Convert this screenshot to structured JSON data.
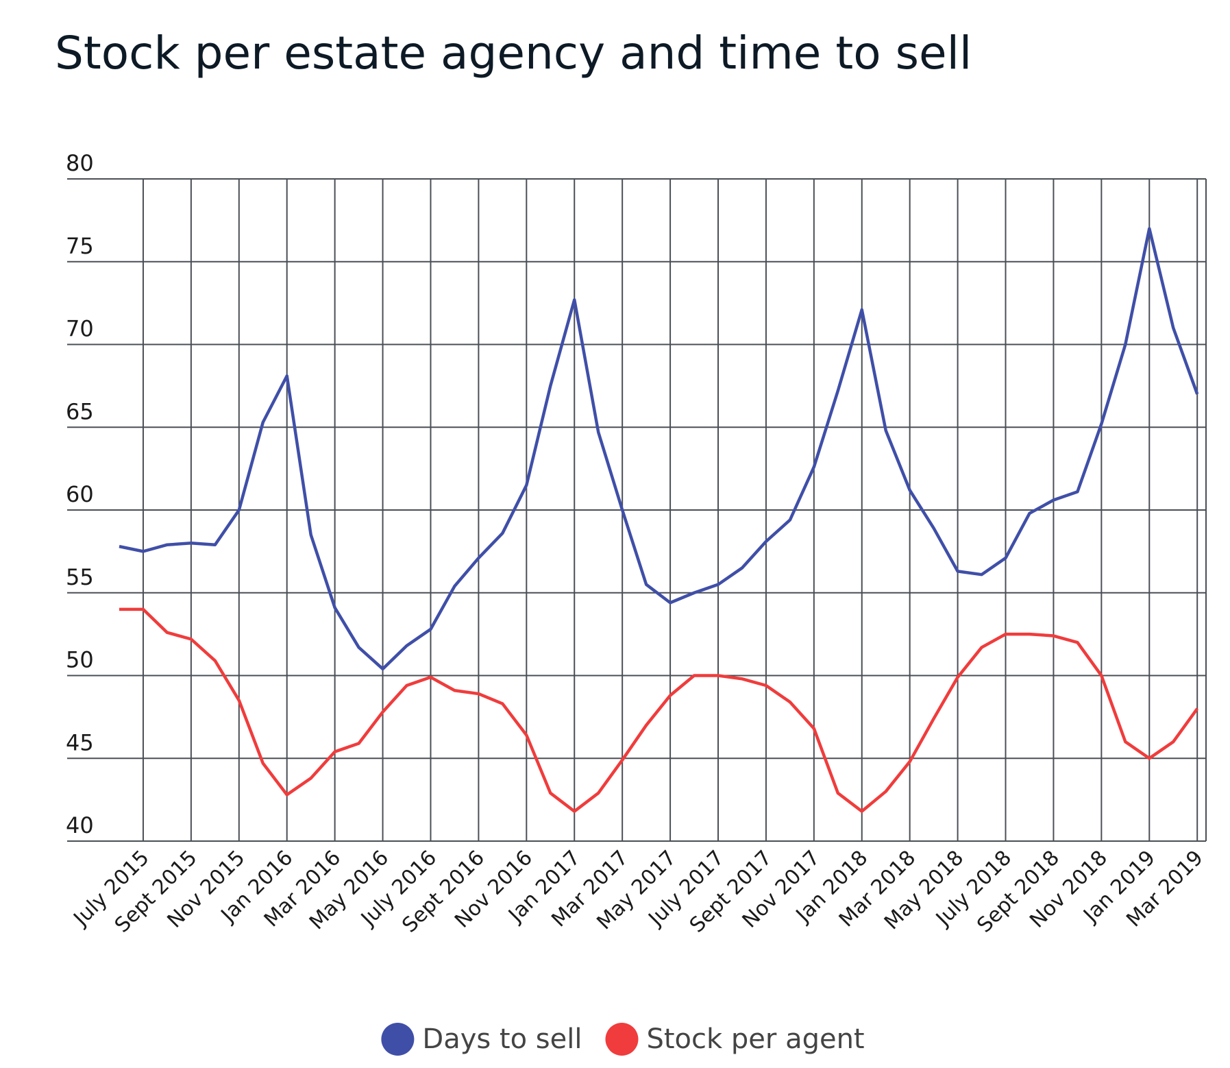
{
  "chart_data": {
    "type": "line",
    "title": "Stock per estate agency and time to sell",
    "categories": [
      null,
      "July 2015",
      null,
      "Sept 2015",
      null,
      "Nov 2015",
      null,
      "Jan 2016",
      null,
      "Mar 2016",
      null,
      "May 2016",
      null,
      "July 2016",
      null,
      "Sept 2016",
      null,
      "Nov 2016",
      null,
      "Jan 2017",
      null,
      "Mar 2017",
      null,
      "May 2017",
      null,
      "July 2017",
      null,
      "Sept 2017",
      null,
      "Nov 2017",
      null,
      "Jan 2018",
      null,
      "Mar 2018",
      null,
      "May 2018",
      null,
      "July 2018",
      null,
      "Sept 2018",
      null,
      "Nov 2018",
      null,
      "Jan 2019",
      null,
      "Mar 2019"
    ],
    "series": [
      {
        "name": "Days to sell",
        "color": "#3f4fa8",
        "values": [
          57.8,
          57.5,
          57.9,
          58.0,
          57.9,
          60.0,
          65.3,
          68.1,
          58.5,
          54.1,
          51.7,
          50.4,
          51.8,
          52.8,
          55.4,
          57.1,
          58.6,
          61.5,
          67.5,
          72.7,
          64.7,
          60.0,
          55.5,
          54.4,
          55.0,
          55.5,
          56.5,
          58.1,
          59.4,
          62.6,
          67.2,
          72.1,
          64.8,
          61.2,
          58.9,
          56.3,
          56.1,
          57.1,
          59.8,
          60.6,
          61.1,
          65.2,
          70.0,
          77.0,
          71.0,
          67.0
        ]
      },
      {
        "name": "Stock per agent",
        "color": "#f03c3c",
        "values": [
          54.0,
          54.0,
          52.6,
          52.2,
          50.9,
          48.5,
          44.7,
          42.8,
          43.8,
          45.4,
          45.9,
          47.8,
          49.4,
          49.9,
          49.1,
          48.9,
          48.3,
          46.4,
          42.9,
          41.8,
          42.9,
          44.9,
          47.0,
          48.8,
          50.0,
          50.0,
          49.8,
          49.4,
          48.4,
          46.8,
          42.9,
          41.8,
          43.0,
          44.8,
          47.4,
          49.9,
          51.7,
          52.5,
          52.5,
          52.4,
          52.0,
          50.0,
          46.0,
          45.0,
          46.0,
          48.0
        ]
      }
    ],
    "ylim": [
      40,
      80
    ],
    "yticks": [
      40,
      45,
      50,
      55,
      60,
      65,
      70,
      75,
      80
    ],
    "grid": true,
    "legend": "bottom"
  }
}
